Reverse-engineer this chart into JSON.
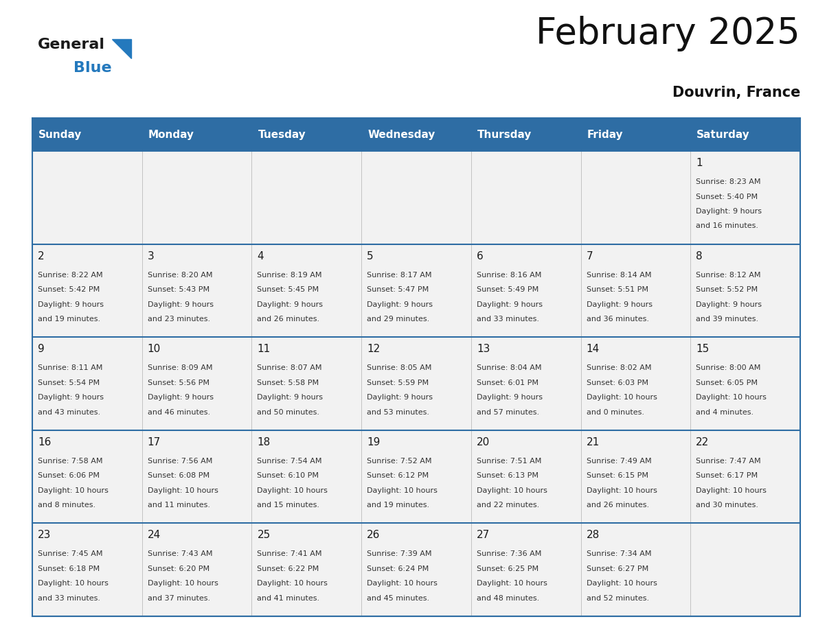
{
  "title": "February 2025",
  "subtitle": "Douvrin, France",
  "header_bg_color": "#2E6DA4",
  "header_text_color": "#FFFFFF",
  "cell_bg_color": "#F2F2F2",
  "grid_line_color": "#2E6DA4",
  "text_color": "#333333",
  "day_number_color": "#1a1a1a",
  "day_headers": [
    "Sunday",
    "Monday",
    "Tuesday",
    "Wednesday",
    "Thursday",
    "Friday",
    "Saturday"
  ],
  "calendar_data": [
    [
      null,
      null,
      null,
      null,
      null,
      null,
      {
        "day": "1",
        "sunrise": "8:23 AM",
        "sunset": "5:40 PM",
        "daylight": "9 hours",
        "daylight2": "and 16 minutes."
      }
    ],
    [
      {
        "day": "2",
        "sunrise": "8:22 AM",
        "sunset": "5:42 PM",
        "daylight": "9 hours",
        "daylight2": "and 19 minutes."
      },
      {
        "day": "3",
        "sunrise": "8:20 AM",
        "sunset": "5:43 PM",
        "daylight": "9 hours",
        "daylight2": "and 23 minutes."
      },
      {
        "day": "4",
        "sunrise": "8:19 AM",
        "sunset": "5:45 PM",
        "daylight": "9 hours",
        "daylight2": "and 26 minutes."
      },
      {
        "day": "5",
        "sunrise": "8:17 AM",
        "sunset": "5:47 PM",
        "daylight": "9 hours",
        "daylight2": "and 29 minutes."
      },
      {
        "day": "6",
        "sunrise": "8:16 AM",
        "sunset": "5:49 PM",
        "daylight": "9 hours",
        "daylight2": "and 33 minutes."
      },
      {
        "day": "7",
        "sunrise": "8:14 AM",
        "sunset": "5:51 PM",
        "daylight": "9 hours",
        "daylight2": "and 36 minutes."
      },
      {
        "day": "8",
        "sunrise": "8:12 AM",
        "sunset": "5:52 PM",
        "daylight": "9 hours",
        "daylight2": "and 39 minutes."
      }
    ],
    [
      {
        "day": "9",
        "sunrise": "8:11 AM",
        "sunset": "5:54 PM",
        "daylight": "9 hours",
        "daylight2": "and 43 minutes."
      },
      {
        "day": "10",
        "sunrise": "8:09 AM",
        "sunset": "5:56 PM",
        "daylight": "9 hours",
        "daylight2": "and 46 minutes."
      },
      {
        "day": "11",
        "sunrise": "8:07 AM",
        "sunset": "5:58 PM",
        "daylight": "9 hours",
        "daylight2": "and 50 minutes."
      },
      {
        "day": "12",
        "sunrise": "8:05 AM",
        "sunset": "5:59 PM",
        "daylight": "9 hours",
        "daylight2": "and 53 minutes."
      },
      {
        "day": "13",
        "sunrise": "8:04 AM",
        "sunset": "6:01 PM",
        "daylight": "9 hours",
        "daylight2": "and 57 minutes."
      },
      {
        "day": "14",
        "sunrise": "8:02 AM",
        "sunset": "6:03 PM",
        "daylight": "10 hours",
        "daylight2": "and 0 minutes."
      },
      {
        "day": "15",
        "sunrise": "8:00 AM",
        "sunset": "6:05 PM",
        "daylight": "10 hours",
        "daylight2": "and 4 minutes."
      }
    ],
    [
      {
        "day": "16",
        "sunrise": "7:58 AM",
        "sunset": "6:06 PM",
        "daylight": "10 hours",
        "daylight2": "and 8 minutes."
      },
      {
        "day": "17",
        "sunrise": "7:56 AM",
        "sunset": "6:08 PM",
        "daylight": "10 hours",
        "daylight2": "and 11 minutes."
      },
      {
        "day": "18",
        "sunrise": "7:54 AM",
        "sunset": "6:10 PM",
        "daylight": "10 hours",
        "daylight2": "and 15 minutes."
      },
      {
        "day": "19",
        "sunrise": "7:52 AM",
        "sunset": "6:12 PM",
        "daylight": "10 hours",
        "daylight2": "and 19 minutes."
      },
      {
        "day": "20",
        "sunrise": "7:51 AM",
        "sunset": "6:13 PM",
        "daylight": "10 hours",
        "daylight2": "and 22 minutes."
      },
      {
        "day": "21",
        "sunrise": "7:49 AM",
        "sunset": "6:15 PM",
        "daylight": "10 hours",
        "daylight2": "and 26 minutes."
      },
      {
        "day": "22",
        "sunrise": "7:47 AM",
        "sunset": "6:17 PM",
        "daylight": "10 hours",
        "daylight2": "and 30 minutes."
      }
    ],
    [
      {
        "day": "23",
        "sunrise": "7:45 AM",
        "sunset": "6:18 PM",
        "daylight": "10 hours",
        "daylight2": "and 33 minutes."
      },
      {
        "day": "24",
        "sunrise": "7:43 AM",
        "sunset": "6:20 PM",
        "daylight": "10 hours",
        "daylight2": "and 37 minutes."
      },
      {
        "day": "25",
        "sunrise": "7:41 AM",
        "sunset": "6:22 PM",
        "daylight": "10 hours",
        "daylight2": "and 41 minutes."
      },
      {
        "day": "26",
        "sunrise": "7:39 AM",
        "sunset": "6:24 PM",
        "daylight": "10 hours",
        "daylight2": "and 45 minutes."
      },
      {
        "day": "27",
        "sunrise": "7:36 AM",
        "sunset": "6:25 PM",
        "daylight": "10 hours",
        "daylight2": "and 48 minutes."
      },
      {
        "day": "28",
        "sunrise": "7:34 AM",
        "sunset": "6:27 PM",
        "daylight": "10 hours",
        "daylight2": "and 52 minutes."
      },
      null
    ]
  ],
  "logo_general_color": "#1a1a1a",
  "logo_blue_color": "#2479BD",
  "logo_triangle_color": "#2479BD",
  "title_fontsize": 38,
  "subtitle_fontsize": 15,
  "header_fontsize": 11,
  "day_num_fontsize": 11,
  "cell_fontsize": 8
}
